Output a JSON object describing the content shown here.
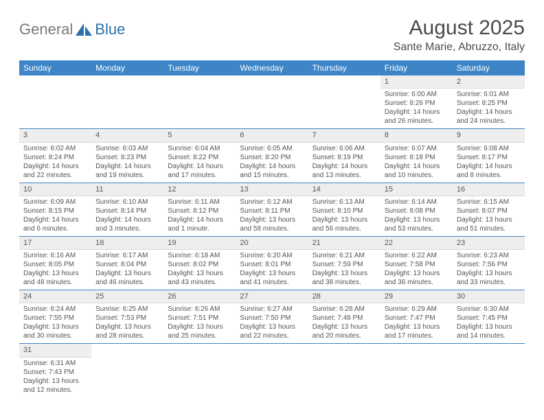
{
  "brand": {
    "name_part1": "General",
    "name_part2": "Blue"
  },
  "title": "August 2025",
  "location": "Sante Marie, Abruzzo, Italy",
  "colors": {
    "header_bg": "#3d85c6",
    "header_fg": "#ffffff",
    "daynum_bg": "#eeeeee",
    "row_border": "#3d85c6",
    "text": "#555555",
    "brand_gray": "#7a7a7a",
    "brand_blue": "#2b6fb0"
  },
  "weekdays": [
    "Sunday",
    "Monday",
    "Tuesday",
    "Wednesday",
    "Thursday",
    "Friday",
    "Saturday"
  ],
  "weeks": [
    [
      null,
      null,
      null,
      null,
      null,
      {
        "n": "1",
        "sr": "6:00 AM",
        "ss": "8:26 PM",
        "dl": "14 hours and 26 minutes."
      },
      {
        "n": "2",
        "sr": "6:01 AM",
        "ss": "8:25 PM",
        "dl": "14 hours and 24 minutes."
      }
    ],
    [
      {
        "n": "3",
        "sr": "6:02 AM",
        "ss": "8:24 PM",
        "dl": "14 hours and 22 minutes."
      },
      {
        "n": "4",
        "sr": "6:03 AM",
        "ss": "8:23 PM",
        "dl": "14 hours and 19 minutes."
      },
      {
        "n": "5",
        "sr": "6:04 AM",
        "ss": "8:22 PM",
        "dl": "14 hours and 17 minutes."
      },
      {
        "n": "6",
        "sr": "6:05 AM",
        "ss": "8:20 PM",
        "dl": "14 hours and 15 minutes."
      },
      {
        "n": "7",
        "sr": "6:06 AM",
        "ss": "8:19 PM",
        "dl": "14 hours and 13 minutes."
      },
      {
        "n": "8",
        "sr": "6:07 AM",
        "ss": "8:18 PM",
        "dl": "14 hours and 10 minutes."
      },
      {
        "n": "9",
        "sr": "6:08 AM",
        "ss": "8:17 PM",
        "dl": "14 hours and 8 minutes."
      }
    ],
    [
      {
        "n": "10",
        "sr": "6:09 AM",
        "ss": "8:15 PM",
        "dl": "14 hours and 6 minutes."
      },
      {
        "n": "11",
        "sr": "6:10 AM",
        "ss": "8:14 PM",
        "dl": "14 hours and 3 minutes."
      },
      {
        "n": "12",
        "sr": "6:11 AM",
        "ss": "8:12 PM",
        "dl": "14 hours and 1 minute."
      },
      {
        "n": "13",
        "sr": "6:12 AM",
        "ss": "8:11 PM",
        "dl": "13 hours and 58 minutes."
      },
      {
        "n": "14",
        "sr": "6:13 AM",
        "ss": "8:10 PM",
        "dl": "13 hours and 56 minutes."
      },
      {
        "n": "15",
        "sr": "6:14 AM",
        "ss": "8:08 PM",
        "dl": "13 hours and 53 minutes."
      },
      {
        "n": "16",
        "sr": "6:15 AM",
        "ss": "8:07 PM",
        "dl": "13 hours and 51 minutes."
      }
    ],
    [
      {
        "n": "17",
        "sr": "6:16 AM",
        "ss": "8:05 PM",
        "dl": "13 hours and 48 minutes."
      },
      {
        "n": "18",
        "sr": "6:17 AM",
        "ss": "8:04 PM",
        "dl": "13 hours and 46 minutes."
      },
      {
        "n": "19",
        "sr": "6:18 AM",
        "ss": "8:02 PM",
        "dl": "13 hours and 43 minutes."
      },
      {
        "n": "20",
        "sr": "6:20 AM",
        "ss": "8:01 PM",
        "dl": "13 hours and 41 minutes."
      },
      {
        "n": "21",
        "sr": "6:21 AM",
        "ss": "7:59 PM",
        "dl": "13 hours and 38 minutes."
      },
      {
        "n": "22",
        "sr": "6:22 AM",
        "ss": "7:58 PM",
        "dl": "13 hours and 36 minutes."
      },
      {
        "n": "23",
        "sr": "6:23 AM",
        "ss": "7:56 PM",
        "dl": "13 hours and 33 minutes."
      }
    ],
    [
      {
        "n": "24",
        "sr": "6:24 AM",
        "ss": "7:55 PM",
        "dl": "13 hours and 30 minutes."
      },
      {
        "n": "25",
        "sr": "6:25 AM",
        "ss": "7:53 PM",
        "dl": "13 hours and 28 minutes."
      },
      {
        "n": "26",
        "sr": "6:26 AM",
        "ss": "7:51 PM",
        "dl": "13 hours and 25 minutes."
      },
      {
        "n": "27",
        "sr": "6:27 AM",
        "ss": "7:50 PM",
        "dl": "13 hours and 22 minutes."
      },
      {
        "n": "28",
        "sr": "6:28 AM",
        "ss": "7:48 PM",
        "dl": "13 hours and 20 minutes."
      },
      {
        "n": "29",
        "sr": "6:29 AM",
        "ss": "7:47 PM",
        "dl": "13 hours and 17 minutes."
      },
      {
        "n": "30",
        "sr": "6:30 AM",
        "ss": "7:45 PM",
        "dl": "13 hours and 14 minutes."
      }
    ],
    [
      {
        "n": "31",
        "sr": "6:31 AM",
        "ss": "7:43 PM",
        "dl": "13 hours and 12 minutes."
      },
      null,
      null,
      null,
      null,
      null,
      null
    ]
  ],
  "labels": {
    "sunrise": "Sunrise:",
    "sunset": "Sunset:",
    "daylight": "Daylight:"
  }
}
